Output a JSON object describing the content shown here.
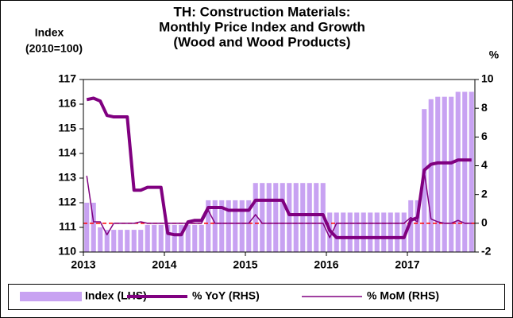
{
  "chart_data": {
    "type": "bar-line",
    "title": [
      "TH: Construction Materials:",
      "Monthly Price Index and Growth",
      "(Wood and Wood Products)"
    ],
    "ylabel": [
      "Index",
      "(2010=100)"
    ],
    "y2label": "%",
    "categories": [
      "2013",
      null,
      null,
      null,
      null,
      null,
      null,
      null,
      null,
      null,
      null,
      null,
      "2014",
      null,
      null,
      null,
      null,
      null,
      null,
      null,
      null,
      null,
      null,
      null,
      "2015",
      null,
      null,
      null,
      null,
      null,
      null,
      null,
      null,
      null,
      null,
      null,
      "2016",
      null,
      null,
      null,
      null,
      null,
      null,
      null,
      null,
      null,
      null,
      null,
      "2017",
      null,
      null,
      null,
      null,
      null,
      null,
      null,
      null,
      null
    ],
    "series": [
      {
        "name": "Index (LHS)",
        "kind": "bar",
        "color": "#c8a2f2",
        "axis": "y",
        "values": [
          112.0,
          112.0,
          111.0,
          110.9,
          110.9,
          110.9,
          110.9,
          110.9,
          110.9,
          111.1,
          111.1,
          111.1,
          111.1,
          111.1,
          111.1,
          111.1,
          111.1,
          111.1,
          112.1,
          112.1,
          112.1,
          112.1,
          112.1,
          112.1,
          112.1,
          112.8,
          112.8,
          112.8,
          112.8,
          112.8,
          112.8,
          112.8,
          112.8,
          112.8,
          112.8,
          112.8,
          111.6,
          111.6,
          111.6,
          111.6,
          111.6,
          111.6,
          111.6,
          111.6,
          111.6,
          111.6,
          111.6,
          111.6,
          112.1,
          112.1,
          115.8,
          116.2,
          116.3,
          116.3,
          116.3,
          116.5,
          116.5,
          116.5
        ]
      },
      {
        "name": "% YoY (RHS)",
        "kind": "line",
        "width": 4,
        "color": "#800080",
        "axis": "y2",
        "values": [
          8.6,
          8.7,
          8.5,
          7.5,
          7.4,
          7.4,
          7.4,
          2.3,
          2.3,
          2.5,
          2.5,
          2.5,
          -0.7,
          -0.8,
          -0.8,
          0.1,
          0.2,
          0.2,
          1.1,
          1.1,
          1.1,
          0.9,
          0.9,
          0.9,
          0.9,
          1.6,
          1.6,
          1.6,
          1.6,
          1.6,
          0.6,
          0.6,
          0.6,
          0.6,
          0.6,
          0.6,
          -0.5,
          -1.0,
          -1.0,
          -1.0,
          -1.0,
          -1.0,
          -1.0,
          -1.0,
          -1.0,
          -1.0,
          -1.0,
          -1.0,
          0.2,
          0.4,
          3.7,
          4.1,
          4.2,
          4.2,
          4.2,
          4.4,
          4.4,
          4.4
        ]
      },
      {
        "name": "% MoM (RHS)",
        "kind": "line",
        "width": 1.5,
        "color": "#800080",
        "axis": "y2",
        "values": [
          3.3,
          0.1,
          0.1,
          -0.8,
          0.0,
          0.0,
          0.0,
          0.0,
          0.1,
          0.0,
          0.0,
          0.0,
          0.0,
          0.0,
          0.0,
          0.0,
          0.0,
          0.0,
          0.9,
          0.0,
          0.0,
          0.0,
          0.0,
          0.0,
          0.0,
          0.6,
          0.0,
          0.0,
          0.0,
          0.0,
          0.0,
          0.0,
          0.0,
          0.0,
          0.0,
          0.0,
          -1.0,
          0.0,
          0.0,
          0.0,
          0.0,
          0.0,
          0.0,
          0.0,
          0.0,
          0.0,
          0.0,
          0.0,
          0.4,
          0.1,
          3.6,
          0.3,
          0.1,
          0.0,
          0.0,
          0.2,
          0.0,
          0.0
        ]
      }
    ],
    "ylim": [
      110,
      117
    ],
    "yticks": [
      110,
      111,
      112,
      113,
      114,
      115,
      116,
      117
    ],
    "y2lim": [
      -2,
      10
    ],
    "y2ticks": [
      -2,
      0,
      2,
      4,
      6,
      8,
      10
    ],
    "zero_line_color": "#ff0000",
    "legend": "bottom"
  }
}
